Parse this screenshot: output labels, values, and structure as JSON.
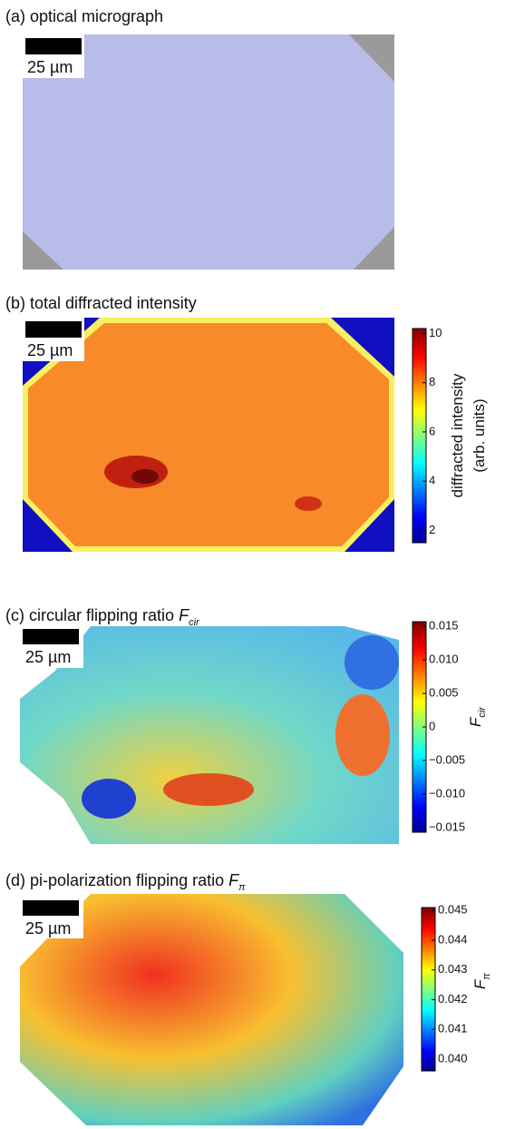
{
  "panels": [
    {
      "title": "(a) optical micrograph",
      "scale_label": "25 µm"
    },
    {
      "title": "(b) total diffracted intensity",
      "scale_label": "25 µm",
      "colorbar": {
        "label": "diffracted intensity",
        "label_2": "(arb. units)",
        "lim": [
          1.5,
          10.2
        ],
        "ticks": [
          2,
          4,
          6,
          8,
          10
        ]
      }
    },
    {
      "title": "(c) circular flipping ratio ",
      "symbol": "F",
      "subscript": "cir",
      "scale_label": "25 µm",
      "colorbar": {
        "label": "F",
        "label_subscript": "cir",
        "lim": [
          -0.0157,
          0.0157
        ],
        "ticks": [
          {
            "value": 0.015,
            "label": "0.015"
          },
          {
            "value": 0.01,
            "label": "0.010"
          },
          {
            "value": 0.005,
            "label": "0.005"
          },
          0,
          {
            "value": -0.005,
            "label": "−0.005"
          },
          {
            "value": -0.01,
            "label": "−0.010"
          },
          {
            "value": -0.015,
            "label": "−0.015"
          }
        ]
      }
    },
    {
      "title": "(d) pi-polarization flipping ratio ",
      "symbol": "F",
      "subscript": "π",
      "scale_label": "25 µm",
      "colorbar": {
        "label": "F",
        "label_subscript": "π",
        "lim": [
          0.0396,
          0.0451
        ],
        "ticks": [
          0.045,
          0.044,
          0.043,
          0.042,
          0.041,
          {
            "value": 0.04,
            "label": "0.040"
          }
        ]
      }
    }
  ]
}
